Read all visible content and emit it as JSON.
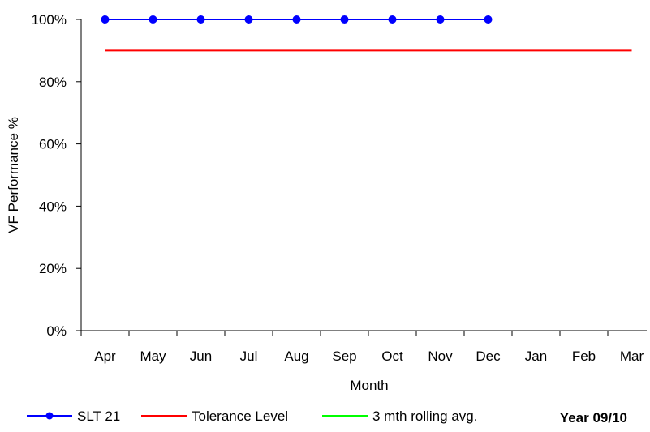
{
  "chart_data": {
    "type": "line",
    "categories": [
      "Apr",
      "May",
      "Jun",
      "Jul",
      "Aug",
      "Sep",
      "Oct",
      "Nov",
      "Dec",
      "Jan",
      "Feb",
      "Mar"
    ],
    "yticks": [
      "0%",
      "20%",
      "40%",
      "60%",
      "80%",
      "100%"
    ],
    "ylim": [
      0,
      100
    ],
    "xlabel": "Month",
    "ylabel": "VF Performance %",
    "grid": false,
    "legend_position": "bottom",
    "note": "Year 09/10",
    "series": [
      {
        "name": "SLT 21",
        "color": "#0000ff",
        "marker": "circle",
        "values": [
          100,
          100,
          100,
          100,
          100,
          100,
          100,
          100,
          100,
          null,
          null,
          null
        ]
      },
      {
        "name": "Tolerance Level",
        "color": "#ff0000",
        "marker": "none",
        "values": [
          90,
          90,
          90,
          90,
          90,
          90,
          90,
          90,
          90,
          90,
          90,
          90
        ]
      },
      {
        "name": "3 mth rolling avg.",
        "color": "#00ff00",
        "marker": "none",
        "values": [
          100,
          100,
          100,
          100,
          100,
          100,
          100,
          100,
          100,
          null,
          null,
          null
        ]
      }
    ]
  }
}
